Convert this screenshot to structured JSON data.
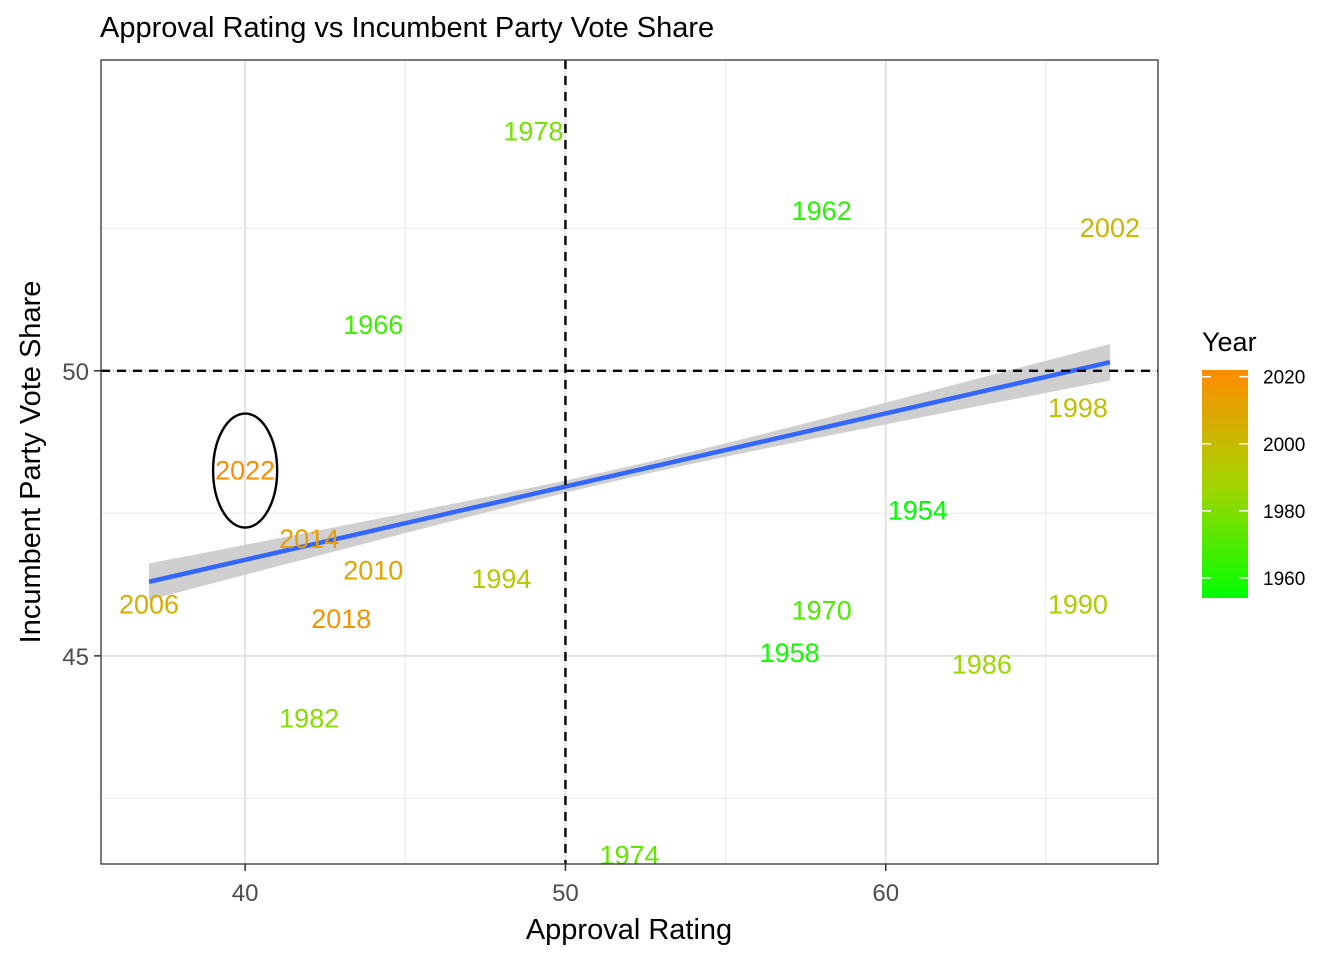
{
  "chart_data": {
    "type": "scatter",
    "title": "Approval Rating vs Incumbent Party Vote Share",
    "xlabel": "Approval Rating",
    "ylabel": "Incumbent Party Vote Share",
    "xlim": [
      35.5,
      68.5
    ],
    "ylim": [
      41.35,
      55.45
    ],
    "x_ticks": [
      40,
      50,
      60
    ],
    "y_ticks": [
      45,
      50
    ],
    "x_minor_gridlines": [
      45,
      55,
      65
    ],
    "y_minor_gridlines": [
      42.5,
      47.5,
      52.5
    ],
    "grid": true,
    "reference_lines": {
      "x": 50,
      "y": 50,
      "style": "dashed"
    },
    "points": [
      {
        "label": "1954",
        "x": 61,
        "y": 47.55,
        "year": 1954
      },
      {
        "label": "1958",
        "x": 57,
        "y": 45.05,
        "year": 1958
      },
      {
        "label": "1962",
        "x": 58,
        "y": 52.8,
        "year": 1962
      },
      {
        "label": "1966",
        "x": 44,
        "y": 50.8,
        "year": 1966
      },
      {
        "label": "1970",
        "x": 58,
        "y": 45.8,
        "year": 1970
      },
      {
        "label": "1974",
        "x": 52,
        "y": 41.5,
        "year": 1974
      },
      {
        "label": "1978",
        "x": 49,
        "y": 54.2,
        "year": 1978
      },
      {
        "label": "1982",
        "x": 42,
        "y": 43.9,
        "year": 1982
      },
      {
        "label": "1986",
        "x": 63,
        "y": 44.85,
        "year": 1986
      },
      {
        "label": "1990",
        "x": 66,
        "y": 45.9,
        "year": 1990
      },
      {
        "label": "1994",
        "x": 48,
        "y": 46.35,
        "year": 1994
      },
      {
        "label": "1998",
        "x": 66,
        "y": 49.35,
        "year": 1998
      },
      {
        "label": "2002",
        "x": 67,
        "y": 52.5,
        "year": 2002
      },
      {
        "label": "2006",
        "x": 37,
        "y": 45.9,
        "year": 2006
      },
      {
        "label": "2010",
        "x": 44,
        "y": 46.5,
        "year": 2010
      },
      {
        "label": "2014",
        "x": 42,
        "y": 47.05,
        "year": 2014
      },
      {
        "label": "2018",
        "x": 43,
        "y": 45.65,
        "year": 2018
      },
      {
        "label": "2022",
        "x": 40,
        "y": 48.25,
        "year": 2022
      }
    ],
    "trend_line": {
      "method": "linear",
      "start": {
        "x": 37,
        "y": 46.3
      },
      "end": {
        "x": 67,
        "y": 50.15
      },
      "band_halfwidth_at_ends": 0.32,
      "band_halfwidth_at_center": 0.1,
      "color": "#3366ff",
      "band_color": "#cccccc"
    },
    "highlight": {
      "shape": "ellipse",
      "center": {
        "x": 40,
        "y": 48.25
      },
      "rx_data": 1.0,
      "ry_data": 1.0
    },
    "legend": {
      "title": "Year",
      "position": "right",
      "type": "colorbar",
      "range": [
        1954,
        2022
      ],
      "ticks": [
        1960,
        1980,
        2000,
        2020
      ],
      "low_color": "#00ff00",
      "high_color": "#ff8c00"
    }
  }
}
